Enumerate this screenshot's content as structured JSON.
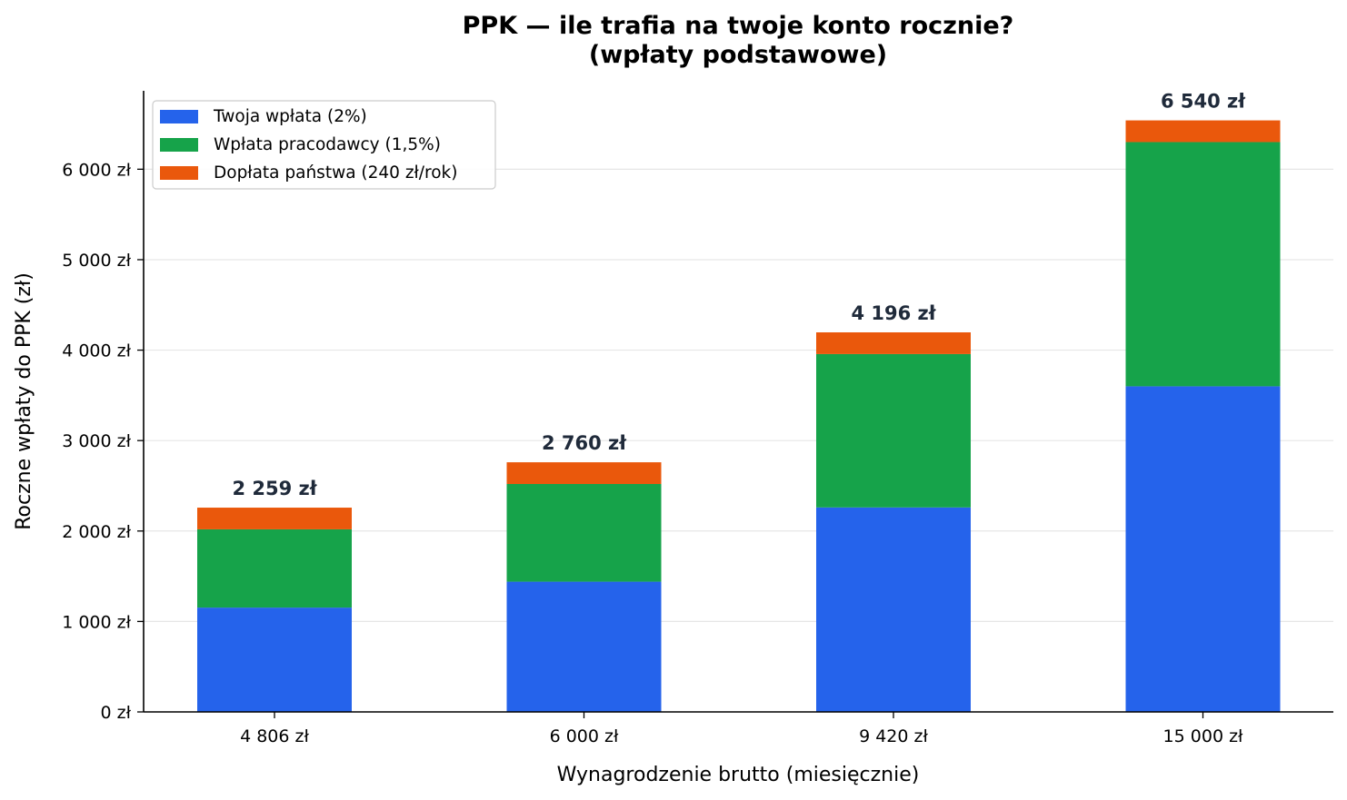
{
  "chart_data": {
    "type": "bar",
    "stacked": true,
    "title_lines": [
      "PPK — ile trafia na twoje konto rocznie?",
      "(wpłaty podstawowe)"
    ],
    "xlabel": "Wynagrodzenie brutto (miesięcznie)",
    "ylabel": "Roczne wpłaty do PPK (zł)",
    "categories": [
      "4 806 zł",
      "6 000 zł",
      "9 420 zł",
      "15 000 zł"
    ],
    "series": [
      {
        "name": "Twoja wpłata (2%)",
        "color": "#2563eb",
        "values": [
          1153.44,
          1440,
          2260.8,
          3600
        ]
      },
      {
        "name": "Wpłata pracodawcy (1,5%)",
        "color": "#16a34a",
        "values": [
          865.08,
          1080,
          1695.6,
          2700
        ]
      },
      {
        "name": "Dopłata państwa (240 zł/rok)",
        "color": "#ea580c",
        "values": [
          240,
          240,
          240,
          240
        ]
      }
    ],
    "totals": [
      "2 259 zł",
      "2 760 zł",
      "4 196 zł",
      "6 540 zł"
    ],
    "yticks": [
      0,
      1000,
      2000,
      3000,
      4000,
      5000,
      6000
    ],
    "ytick_labels": [
      "0 zł",
      "1 000 zł",
      "2 000 zł",
      "3 000 zł",
      "4 000 zł",
      "5 000 zł",
      "6 000 zł"
    ],
    "ylim": [
      0,
      6867
    ],
    "grid": "y",
    "legend_position": "top-left"
  }
}
